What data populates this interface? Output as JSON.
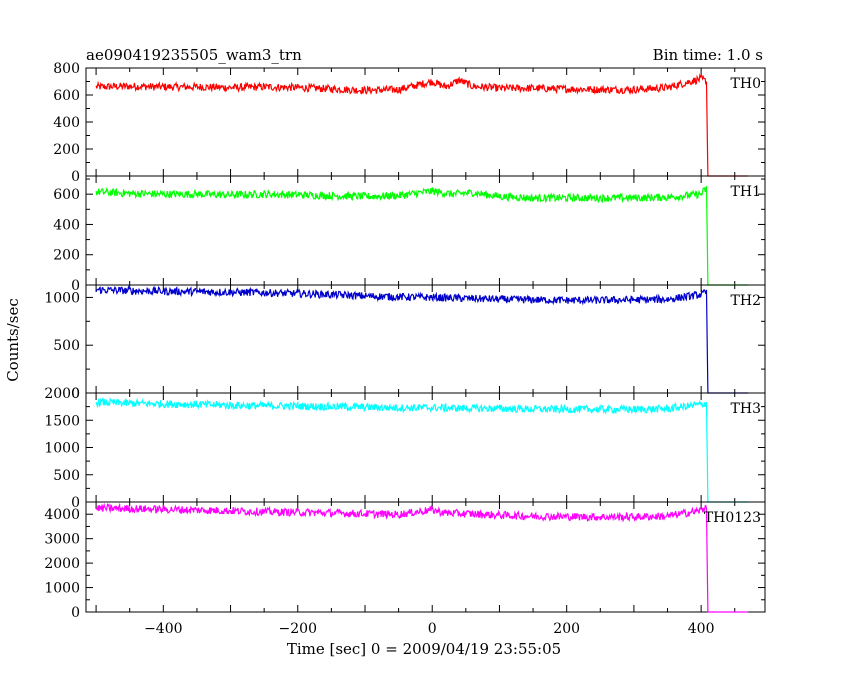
{
  "chart_data": {
    "type": "line",
    "title": "ae090419235505_wam3_trn",
    "bin_time_label": "Bin time: 1.0 s",
    "xlabel": "Time [sec] 0 = 2009/04/19 23:55:05",
    "ylabel": "Counts/sec",
    "xlim": [
      -515,
      495
    ],
    "x_ticks": [
      -400,
      -200,
      0,
      200,
      400
    ],
    "x_tick_labels": [
      "−400",
      "−200",
      "0",
      "200",
      "400"
    ],
    "grid": false,
    "panels": [
      {
        "name": "TH0",
        "color": "#ff0000",
        "ylim": [
          0,
          800
        ],
        "y_ticks": [
          0,
          200,
          400,
          600,
          800
        ],
        "y_tick_labels": [
          "0",
          "200",
          "400",
          "600",
          "800"
        ],
        "x": [
          -500,
          -450,
          -400,
          -350,
          -300,
          -250,
          -200,
          -150,
          -100,
          -50,
          0,
          20,
          40,
          60,
          100,
          150,
          200,
          250,
          300,
          350,
          400,
          408,
          410,
          470
        ],
        "y": [
          660,
          665,
          660,
          660,
          655,
          660,
          655,
          645,
          635,
          640,
          700,
          660,
          710,
          665,
          650,
          650,
          645,
          640,
          640,
          655,
          720,
          700,
          0,
          0
        ]
      },
      {
        "name": "TH1",
        "color": "#00ff00",
        "ylim": [
          0,
          720
        ],
        "y_ticks": [
          0,
          200,
          400,
          600
        ],
        "y_tick_labels": [
          "0",
          "200",
          "400",
          "600"
        ],
        "x": [
          -500,
          -450,
          -400,
          -350,
          -300,
          -250,
          -200,
          -150,
          -100,
          -50,
          0,
          30,
          60,
          100,
          150,
          200,
          250,
          300,
          350,
          400,
          408,
          410,
          470
        ],
        "y": [
          615,
          605,
          600,
          600,
          595,
          600,
          595,
          590,
          585,
          590,
          620,
          600,
          610,
          585,
          575,
          575,
          575,
          575,
          580,
          600,
          640,
          0,
          0
        ]
      },
      {
        "name": "TH2",
        "color": "#0000cc",
        "ylim": [
          0,
          1130
        ],
        "y_ticks": [
          0,
          500,
          1000
        ],
        "y_tick_labels": [
          "0",
          "500",
          "1000"
        ],
        "x": [
          -500,
          -450,
          -400,
          -350,
          -300,
          -250,
          -200,
          -150,
          -100,
          -50,
          0,
          50,
          100,
          150,
          200,
          250,
          300,
          350,
          400,
          408,
          410,
          470
        ],
        "y": [
          1080,
          1070,
          1065,
          1060,
          1055,
          1050,
          1040,
          1030,
          1015,
          1005,
          1000,
          990,
          980,
          975,
          970,
          970,
          975,
          980,
          1030,
          1050,
          0,
          0
        ]
      },
      {
        "name": "TH3",
        "color": "#00ffff",
        "ylim": [
          0,
          2000
        ],
        "y_ticks": [
          0,
          500,
          1000,
          1500,
          2000
        ],
        "y_tick_labels": [
          "0",
          "500",
          "1000",
          "1500",
          "2000"
        ],
        "x": [
          -500,
          -450,
          -400,
          -350,
          -300,
          -250,
          -200,
          -150,
          -100,
          -50,
          0,
          50,
          100,
          150,
          200,
          250,
          300,
          350,
          400,
          408,
          410,
          470
        ],
        "y": [
          1830,
          1810,
          1800,
          1790,
          1775,
          1765,
          1760,
          1750,
          1740,
          1730,
          1730,
          1720,
          1715,
          1705,
          1700,
          1700,
          1700,
          1710,
          1790,
          1820,
          0,
          0
        ]
      },
      {
        "name": "TH0123",
        "color": "#ff00ff",
        "ylim": [
          0,
          4500
        ],
        "y_ticks": [
          0,
          1000,
          2000,
          3000,
          4000
        ],
        "y_tick_labels": [
          "0",
          "1000",
          "2000",
          "3000",
          "4000"
        ],
        "x": [
          -500,
          -450,
          -400,
          -350,
          -300,
          -250,
          -200,
          -150,
          -100,
          -50,
          0,
          20,
          50,
          100,
          150,
          200,
          250,
          300,
          350,
          400,
          408,
          410,
          470
        ],
        "y": [
          4250,
          4230,
          4200,
          4170,
          4140,
          4100,
          4080,
          4050,
          4020,
          3990,
          4180,
          4050,
          4020,
          3960,
          3920,
          3900,
          3890,
          3890,
          3920,
          4150,
          4350,
          0,
          0
        ]
      }
    ]
  }
}
